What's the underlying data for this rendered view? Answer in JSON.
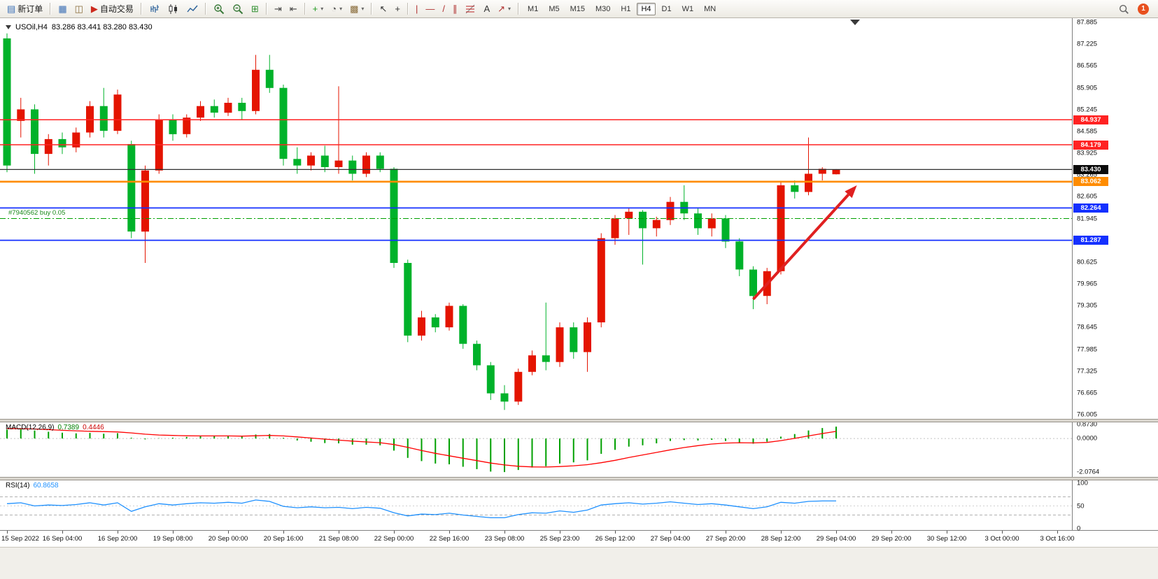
{
  "quote": {
    "symbol_period": "USOil,H4",
    "ohlc": "83.286 83.441 83.280 83.430"
  },
  "colors": {
    "up": "#e41400",
    "down": "#00b22a",
    "macd_hist": "#00a000",
    "macd_signal": "#ff0000",
    "rsi_line": "#1e90ff",
    "arrow": "#e02020",
    "notification": "#e8501e"
  },
  "toolbar": {
    "items": [
      {
        "type": "button",
        "name": "new-order-button",
        "icon": "▤",
        "icon_color": "#3b6fb5",
        "label": "新订单"
      },
      {
        "type": "sep"
      },
      {
        "type": "button",
        "name": "charts-window-button",
        "icon": "▦",
        "icon_color": "#3b6fb5"
      },
      {
        "type": "button",
        "name": "depth-of-market-button",
        "icon": "◫",
        "icon_color": "#8a6d3b"
      },
      {
        "type": "button",
        "name": "autotrading-button",
        "icon": "▶",
        "icon_color": "#cc2a1e",
        "label": "自动交易"
      },
      {
        "type": "sep"
      },
      {
        "type": "button",
        "name": "bar-chart-type-button",
        "svg": "bars"
      },
      {
        "type": "button",
        "name": "candlestick-chart-type-button",
        "svg": "candles"
      },
      {
        "type": "button",
        "name": "line-chart-type-button",
        "svg": "line"
      },
      {
        "type": "sep"
      },
      {
        "type": "button",
        "name": "zoom-in-button",
        "svg": "zoomin"
      },
      {
        "type": "button",
        "name": "zoom-out-button",
        "svg": "zoomout"
      },
      {
        "type": "button",
        "name": "tile-windows-button",
        "icon": "⊞",
        "icon_color": "#2f8f2f"
      },
      {
        "type": "sep"
      },
      {
        "type": "button",
        "name": "auto-scroll-button",
        "icon": "⇥",
        "icon_color": "#444444"
      },
      {
        "type": "button",
        "name": "chart-shift-button",
        "icon": "⇤",
        "icon_color": "#444444"
      },
      {
        "type": "sep"
      },
      {
        "type": "button",
        "name": "indicators-button",
        "icon": "+",
        "icon_color": "#1f9a1f",
        "dropdown": true
      },
      {
        "type": "button",
        "name": "periods-button",
        "icon": "◔",
        "icon_color": "#555555",
        "dropdown": true
      },
      {
        "type": "button",
        "name": "templates-button",
        "icon": "▩",
        "icon_color": "#8a6d3b",
        "dropdown": true
      },
      {
        "type": "sep"
      },
      {
        "type": "button",
        "name": "cursor-button",
        "icon": "↖",
        "icon_color": "#333333"
      },
      {
        "type": "button",
        "name": "crosshair-button",
        "icon": "+",
        "icon_color": "#333333"
      },
      {
        "type": "sep"
      },
      {
        "type": "button",
        "name": "vertical-line-button",
        "icon": "|",
        "icon_color": "#b03030"
      },
      {
        "type": "button",
        "name": "horizontal-line-button",
        "icon": "—",
        "icon_color": "#b03030"
      },
      {
        "type": "button",
        "name": "trendline-button",
        "icon": "/",
        "icon_color": "#b03030"
      },
      {
        "type": "button",
        "name": "channel-button",
        "icon": "∥",
        "icon_color": "#b03030"
      },
      {
        "type": "button",
        "name": "fibonacci-button",
        "svg": "fibo"
      },
      {
        "type": "button",
        "name": "text-label-button",
        "icon": "A",
        "icon_color": "#333333"
      },
      {
        "type": "button",
        "name": "arrows-tool-button",
        "icon": "↗",
        "icon_color": "#b03030",
        "dropdown": true
      },
      {
        "type": "sep"
      },
      {
        "type": "timeframes"
      },
      {
        "type": "spacer"
      },
      {
        "type": "button",
        "name": "search-button",
        "svg": "search"
      },
      {
        "type": "notification"
      }
    ],
    "timeframes": [
      "M1",
      "M5",
      "M15",
      "M30",
      "H1",
      "H4",
      "D1",
      "W1",
      "MN"
    ],
    "active_timeframe": "H4",
    "notification_count": "1"
  },
  "chart_data": [
    {
      "id": "price",
      "type": "candlestick",
      "title": "USOil,H4",
      "ylim": [
        76.005,
        87.885
      ],
      "y_ticks": [
        "87.885",
        "87.225",
        "86.565",
        "85.905",
        "85.245",
        "84.585",
        "83.925",
        "83.265",
        "82.605",
        "81.945",
        "81.285",
        "80.625",
        "79.965",
        "79.305",
        "78.645",
        "77.985",
        "77.325",
        "76.665",
        "76.005"
      ],
      "x_labels": [
        "15 Sep 2022",
        "16 Sep 04:00",
        "16 Sep 20:00",
        "19 Sep 08:00",
        "20 Sep 00:00",
        "20 Sep 16:00",
        "21 Sep 08:00",
        "22 Sep 00:00",
        "22 Sep 16:00",
        "23 Sep 08:00",
        "25 Sep 23:00",
        "26 Sep 12:00",
        "27 Sep 04:00",
        "27 Sep 20:00",
        "28 Sep 12:00",
        "29 Sep 04:00",
        "29 Sep 20:00",
        "30 Sep 12:00",
        "3 Oct 00:00",
        "3 Oct 16:00"
      ],
      "x_label_every": 4,
      "bars": [
        [
          87.4,
          87.55,
          83.35,
          83.55
        ],
        [
          84.9,
          85.6,
          84.4,
          85.25
        ],
        [
          85.25,
          85.4,
          83.3,
          83.9
        ],
        [
          83.9,
          84.5,
          83.55,
          84.35
        ],
        [
          84.35,
          84.55,
          83.9,
          84.1
        ],
        [
          84.1,
          84.7,
          83.95,
          84.55
        ],
        [
          84.55,
          85.5,
          84.4,
          85.35
        ],
        [
          85.35,
          85.9,
          84.4,
          84.6
        ],
        [
          84.6,
          85.85,
          84.5,
          85.7
        ],
        [
          84.2,
          84.3,
          81.35,
          81.55
        ],
        [
          81.55,
          83.55,
          80.6,
          83.4
        ],
        [
          83.4,
          85.1,
          83.3,
          84.95
        ],
        [
          84.95,
          85.1,
          84.3,
          84.5
        ],
        [
          84.5,
          85.1,
          84.4,
          85.0
        ],
        [
          85.0,
          85.5,
          84.9,
          85.35
        ],
        [
          85.35,
          85.55,
          85.0,
          85.15
        ],
        [
          85.15,
          85.6,
          85.05,
          85.45
        ],
        [
          85.45,
          85.6,
          84.95,
          85.2
        ],
        [
          85.2,
          86.9,
          85.1,
          86.45
        ],
        [
          86.45,
          86.9,
          85.75,
          85.9
        ],
        [
          85.9,
          86.0,
          83.55,
          83.75
        ],
        [
          83.75,
          84.1,
          83.3,
          83.55
        ],
        [
          83.55,
          83.95,
          83.4,
          83.85
        ],
        [
          83.85,
          84.15,
          83.35,
          83.5
        ],
        [
          83.5,
          85.95,
          83.3,
          83.7
        ],
        [
          83.7,
          83.85,
          83.1,
          83.3
        ],
        [
          83.3,
          83.95,
          83.2,
          83.85
        ],
        [
          83.85,
          83.95,
          83.35,
          83.45
        ],
        [
          83.45,
          83.5,
          80.45,
          80.6
        ],
        [
          80.6,
          80.7,
          78.2,
          78.4
        ],
        [
          78.4,
          79.15,
          78.25,
          78.95
        ],
        [
          78.95,
          79.05,
          78.5,
          78.65
        ],
        [
          78.65,
          79.4,
          78.55,
          79.3
        ],
        [
          79.3,
          79.35,
          78.0,
          78.15
        ],
        [
          78.15,
          78.25,
          77.35,
          77.5
        ],
        [
          77.5,
          77.6,
          76.45,
          76.65
        ],
        [
          76.65,
          76.9,
          76.15,
          76.4
        ],
        [
          76.4,
          77.4,
          76.3,
          77.3
        ],
        [
          77.3,
          77.95,
          77.2,
          77.8
        ],
        [
          77.8,
          79.4,
          77.35,
          77.6
        ],
        [
          77.6,
          78.8,
          77.45,
          78.65
        ],
        [
          78.65,
          78.8,
          77.7,
          77.9
        ],
        [
          77.9,
          78.95,
          77.3,
          78.8
        ],
        [
          78.8,
          81.5,
          78.65,
          81.35
        ],
        [
          81.35,
          82.05,
          81.15,
          81.95
        ],
        [
          81.95,
          82.25,
          81.45,
          82.15
        ],
        [
          82.15,
          82.2,
          80.55,
          81.65
        ],
        [
          81.65,
          82.0,
          81.4,
          81.9
        ],
        [
          81.9,
          82.6,
          81.75,
          82.45
        ],
        [
          82.45,
          82.95,
          81.9,
          82.1
        ],
        [
          82.1,
          82.25,
          81.45,
          81.65
        ],
        [
          81.65,
          82.1,
          81.4,
          81.95
        ],
        [
          81.95,
          82.05,
          81.05,
          81.25
        ],
        [
          81.25,
          81.35,
          80.2,
          80.4
        ],
        [
          80.4,
          80.5,
          79.2,
          79.6
        ],
        [
          79.6,
          80.45,
          79.35,
          80.35
        ],
        [
          80.35,
          83.05,
          80.25,
          82.95
        ],
        [
          82.95,
          83.1,
          82.55,
          82.75
        ],
        [
          82.75,
          84.4,
          82.65,
          83.3
        ],
        [
          83.3,
          83.5,
          83.1,
          83.45
        ],
        [
          83.286,
          83.441,
          83.28,
          83.43
        ]
      ],
      "hlines": [
        {
          "value": 84.937,
          "label": "84.937",
          "color": "#ff2222",
          "width": 1.5,
          "style": "solid",
          "badge": true
        },
        {
          "value": 84.179,
          "label": "84.179",
          "color": "#ff2222",
          "width": 1.5,
          "style": "solid",
          "badge": true
        },
        {
          "value": 83.43,
          "label": "83.430",
          "color": "#303030",
          "width": 1.2,
          "style": "solid",
          "badge": true,
          "badge_color": "#0a0a0a"
        },
        {
          "value": 83.062,
          "label": "83.062",
          "color": "#ff8c00",
          "width": 2.6,
          "style": "solid",
          "badge": true
        },
        {
          "value": 82.264,
          "label": "82.264",
          "color": "#1430ff",
          "width": 1.8,
          "style": "solid",
          "badge": true
        },
        {
          "value": 81.287,
          "label": "81.287",
          "color": "#1430ff",
          "width": 1.8,
          "style": "solid",
          "badge": true
        },
        {
          "value": 81.945,
          "label": "#7940562 buy 0.05",
          "color": "#00a000",
          "width": 1.1,
          "style": "dashdot",
          "badge": false
        }
      ],
      "annotation_arrow": {
        "from": {
          "bar": 54,
          "price": 79.5
        },
        "to": {
          "bar": 61.5,
          "price": 82.95
        }
      }
    },
    {
      "id": "macd",
      "type": "bar+line",
      "title": "MACD(12,26,9)",
      "value_main": "0.7389",
      "value_signal": "0.4446",
      "ylim": [
        -2.0764,
        0.873
      ],
      "y_ticks": [
        "0.8730",
        "0.0000",
        "-2.0764"
      ],
      "histogram": [
        0.55,
        0.58,
        0.5,
        0.42,
        0.36,
        0.32,
        0.35,
        0.3,
        0.33,
        0.05,
        -0.05,
        0.02,
        0.05,
        0.1,
        0.15,
        0.15,
        0.16,
        0.13,
        0.25,
        0.28,
        0.05,
        -0.12,
        -0.2,
        -0.28,
        -0.3,
        -0.38,
        -0.38,
        -0.42,
        -0.75,
        -1.2,
        -1.4,
        -1.55,
        -1.6,
        -1.75,
        -1.9,
        -2.05,
        -2.08,
        -1.95,
        -1.8,
        -1.72,
        -1.55,
        -1.48,
        -1.35,
        -0.95,
        -0.7,
        -0.5,
        -0.42,
        -0.3,
        -0.15,
        -0.1,
        -0.12,
        -0.08,
        -0.15,
        -0.25,
        -0.32,
        -0.2,
        0.12,
        0.28,
        0.5,
        0.65,
        0.7389
      ],
      "signal": [
        0.62,
        0.61,
        0.59,
        0.55,
        0.51,
        0.48,
        0.45,
        0.43,
        0.41,
        0.35,
        0.27,
        0.22,
        0.19,
        0.17,
        0.16,
        0.16,
        0.16,
        0.15,
        0.17,
        0.19,
        0.16,
        0.1,
        0.03,
        -0.04,
        -0.1,
        -0.16,
        -0.21,
        -0.26,
        -0.37,
        -0.55,
        -0.74,
        -0.92,
        -1.07,
        -1.22,
        -1.37,
        -1.52,
        -1.64,
        -1.72,
        -1.76,
        -1.77,
        -1.74,
        -1.69,
        -1.62,
        -1.5,
        -1.35,
        -1.18,
        -1.02,
        -0.86,
        -0.7,
        -0.56,
        -0.44,
        -0.34,
        -0.28,
        -0.26,
        -0.27,
        -0.24,
        -0.13,
        0.01,
        0.16,
        0.31,
        0.4446
      ]
    },
    {
      "id": "rsi",
      "type": "line",
      "title": "RSI(14)",
      "value": "60.8658",
      "ylim": [
        0,
        100
      ],
      "levels": [
        70,
        50,
        30
      ],
      "y_ticks": [
        "100",
        "50",
        "0"
      ],
      "values": [
        55,
        57,
        50,
        52,
        51,
        53,
        57,
        52,
        57,
        38,
        48,
        55,
        52,
        55,
        57,
        56,
        58,
        56,
        63,
        60,
        49,
        46,
        48,
        46,
        47,
        44,
        47,
        45,
        35,
        28,
        32,
        31,
        34,
        30,
        27,
        24,
        24,
        31,
        35,
        34,
        39,
        36,
        41,
        52,
        55,
        57,
        54,
        56,
        59,
        56,
        53,
        55,
        52,
        48,
        44,
        48,
        58,
        56,
        60,
        61,
        60.8658
      ]
    }
  ]
}
